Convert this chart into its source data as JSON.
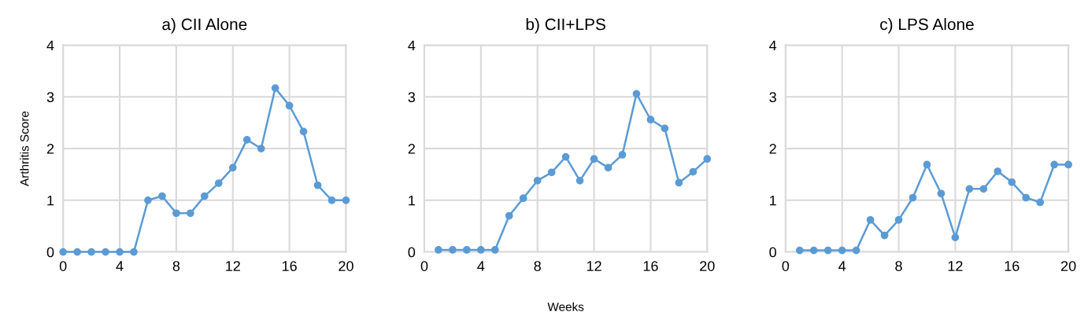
{
  "chart_data": [
    {
      "type": "line",
      "title": "a) CII Alone",
      "ylabel": "Arthritis Score",
      "x": [
        0,
        1,
        2,
        3,
        4,
        5,
        6,
        7,
        8,
        9,
        10,
        11,
        12,
        13,
        14,
        15,
        16,
        17,
        18,
        19,
        20
      ],
      "series": [
        {
          "color": "#5b9bd5",
          "values": [
            0,
            0,
            0,
            0,
            0,
            0,
            1.0,
            1.08,
            0.75,
            0.75,
            1.08,
            1.33,
            1.63,
            2.17,
            2.0,
            3.17,
            2.83,
            2.33,
            1.29,
            1.0,
            1.0
          ]
        }
      ],
      "xlim": [
        0,
        20
      ],
      "xticks": [
        0,
        4,
        8,
        12,
        16,
        20
      ],
      "ylim": [
        0,
        4
      ],
      "yticks": [
        0,
        1,
        2,
        3,
        4
      ],
      "grid": true,
      "marker": "circle",
      "line_style": "solid"
    },
    {
      "type": "line",
      "title": "b) CII+LPS",
      "xlabel": "Weeks",
      "x": [
        1,
        2,
        3,
        4,
        5,
        6,
        7,
        8,
        9,
        10,
        11,
        12,
        13,
        14,
        15,
        16,
        17,
        18,
        19,
        20
      ],
      "series": [
        {
          "color": "#5b9bd5",
          "values": [
            0.04,
            0.04,
            0.04,
            0.04,
            0.04,
            0.7,
            1.04,
            1.38,
            1.54,
            1.84,
            1.38,
            1.8,
            1.63,
            1.88,
            3.06,
            2.56,
            2.39,
            1.34,
            1.55,
            1.8
          ]
        }
      ],
      "xlim": [
        0,
        20
      ],
      "xticks": [
        0,
        4,
        8,
        12,
        16,
        20
      ],
      "ylim": [
        0,
        4
      ],
      "yticks": [
        0,
        1,
        2,
        3,
        4
      ],
      "grid": true,
      "marker": "circle",
      "line_style": "solid"
    },
    {
      "type": "line",
      "title": "c) LPS Alone",
      "x": [
        1,
        2,
        3,
        4,
        5,
        6,
        7,
        8,
        9,
        10,
        11,
        12,
        13,
        14,
        15,
        16,
        17,
        18,
        19,
        20
      ],
      "series": [
        {
          "color": "#5b9bd5",
          "values": [
            0.03,
            0.03,
            0.03,
            0.03,
            0.03,
            0.62,
            0.32,
            0.62,
            1.05,
            1.69,
            1.13,
            0.28,
            1.22,
            1.22,
            1.56,
            1.35,
            1.05,
            0.96,
            1.69,
            1.69
          ]
        }
      ],
      "xlim": [
        0,
        20
      ],
      "xticks": [
        0,
        4,
        8,
        12,
        16,
        20
      ],
      "ylim": [
        0,
        4
      ],
      "yticks": [
        0,
        1,
        2,
        3,
        4
      ],
      "grid": true,
      "marker": "circle",
      "line_style": "solid"
    }
  ]
}
